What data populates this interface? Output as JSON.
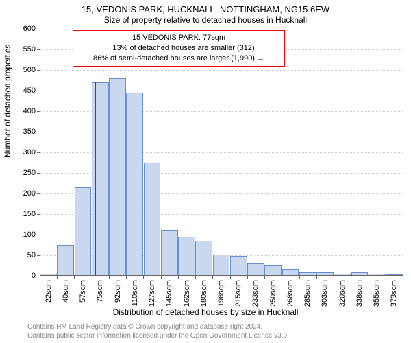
{
  "title_main": "15, VEDONIS PARK, HUCKNALL, NOTTINGHAM, NG15 6EW",
  "title_sub": "Size of property relative to detached houses in Hucknall",
  "y_axis_label": "Number of detached properties",
  "x_axis_label": "Distribution of detached houses by size in Hucknall",
  "footer_line1": "Contains HM Land Registry data © Crown copyright and database right 2024.",
  "footer_line2": "Contains public sector information licensed under the Open Government Licence v3.0.",
  "chart": {
    "type": "histogram",
    "ylim": [
      0,
      600
    ],
    "ytick_step": 50,
    "x_categories": [
      "22sqm",
      "40sqm",
      "57sqm",
      "75sqm",
      "92sqm",
      "110sqm",
      "127sqm",
      "145sqm",
      "162sqm",
      "180sqm",
      "198sqm",
      "215sqm",
      "233sqm",
      "250sqm",
      "268sqm",
      "285sqm",
      "303sqm",
      "320sqm",
      "338sqm",
      "355sqm",
      "373sqm"
    ],
    "values": [
      5,
      75,
      215,
      470,
      480,
      445,
      275,
      110,
      95,
      85,
      52,
      48,
      30,
      25,
      16,
      8,
      8,
      5,
      8,
      5,
      3
    ],
    "bar_fill": "#c9d8ef",
    "bar_stroke": "#6a8fcf",
    "grid_color": "#cccccc",
    "axis_color": "#666666",
    "background_color": "#ffffff",
    "marker": {
      "position_category_index": 3,
      "fraction_into_bin": 0.15,
      "color": "#ff0000"
    },
    "annotation": {
      "line1": "15 VEDONIS PARK: 77sqm",
      "line2": "← 13% of detached houses are smaller (312)",
      "line3": "86% of semi-detached houses are larger (1,990) →",
      "border_color": "#ff0000",
      "text_color": "#000000"
    }
  }
}
